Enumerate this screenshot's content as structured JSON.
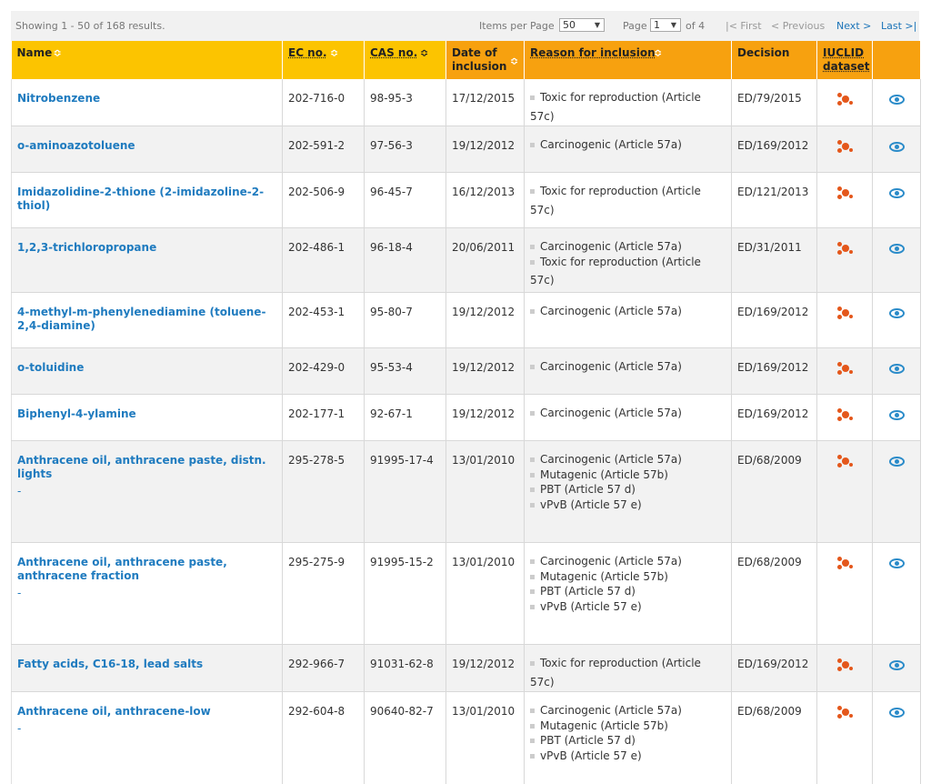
{
  "pagination": {
    "showing": "Showing 1 - 50 of 168 results.",
    "items_per_page_label": "Items per Page",
    "items_per_page_value": "50",
    "page_label": "Page",
    "page_value": "1",
    "of_pages": "of 4",
    "first": "|< First",
    "previous": "< Previous",
    "next": "Next >",
    "last": "Last >|"
  },
  "columns": {
    "name": "Name",
    "ec": "EC no.",
    "cas": "CAS no.",
    "date": "Date of inclusion",
    "reason": "Reason for inclusion",
    "decision": "Decision",
    "iuclid": "IUCLID dataset"
  },
  "icons": {
    "sort": "sort-icon",
    "iuclid": "iuclid-dataset-icon",
    "view": "eye-icon"
  },
  "colors": {
    "header_yellow": "#fcc400",
    "header_orange": "#f7a10f",
    "link": "#1f7bbf",
    "iuclid_icon": "#e4571b"
  },
  "rows": [
    {
      "name": "Nitrobenzene",
      "extra": "",
      "ec": "202-716-0",
      "cas": "98-95-3",
      "date": "17/12/2015",
      "reasons": [
        "Toxic for reproduction (Article 57c)"
      ],
      "decision": "ED/79/2015"
    },
    {
      "name": "o-aminoazotoluene",
      "extra": "",
      "ec": "202-591-2",
      "cas": "97-56-3",
      "date": "19/12/2012",
      "reasons": [
        "Carcinogenic (Article 57a)"
      ],
      "decision": "ED/169/2012"
    },
    {
      "name": "Imidazolidine-2-thione (2-imidazoline-2-thiol)",
      "extra": "",
      "ec": "202-506-9",
      "cas": "96-45-7",
      "date": "16/12/2013",
      "reasons": [
        "Toxic for reproduction (Article 57c)"
      ],
      "decision": "ED/121/2013"
    },
    {
      "name": "1,2,3-trichloropropane",
      "extra": "",
      "ec": "202-486-1",
      "cas": "96-18-4",
      "date": "20/06/2011",
      "reasons": [
        "Carcinogenic (Article 57a)",
        "Toxic for reproduction (Article 57c)"
      ],
      "decision": "ED/31/2011"
    },
    {
      "name": "4-methyl-m-phenylenediamine (toluene-2,4-diamine)",
      "extra": "",
      "ec": "202-453-1",
      "cas": "95-80-7",
      "date": "19/12/2012",
      "reasons": [
        "Carcinogenic (Article 57a)"
      ],
      "decision": "ED/169/2012"
    },
    {
      "name": "o-toluidine",
      "extra": "",
      "ec": "202-429-0",
      "cas": "95-53-4",
      "date": "19/12/2012",
      "reasons": [
        "Carcinogenic (Article 57a)"
      ],
      "decision": "ED/169/2012"
    },
    {
      "name": "Biphenyl-4-ylamine",
      "extra": "",
      "ec": "202-177-1",
      "cas": "92-67-1",
      "date": "19/12/2012",
      "reasons": [
        "Carcinogenic (Article 57a)"
      ],
      "decision": "ED/169/2012"
    },
    {
      "name": "Anthracene oil, anthracene paste, distn. lights",
      "extra": "-",
      "ec": "295-278-5",
      "cas": "91995-17-4",
      "date": "13/01/2010",
      "reasons": [
        "Carcinogenic (Article 57a)",
        "Mutagenic (Article 57b)",
        "PBT (Article 57 d)",
        "vPvB (Article 57 e)"
      ],
      "decision": "ED/68/2009"
    },
    {
      "name": "Anthracene oil, anthracene paste, anthracene fraction",
      "extra": "-",
      "ec": "295-275-9",
      "cas": "91995-15-2",
      "date": "13/01/2010",
      "reasons": [
        "Carcinogenic (Article 57a)",
        "Mutagenic (Article 57b)",
        "PBT (Article 57 d)",
        "vPvB (Article 57 e)"
      ],
      "decision": "ED/68/2009"
    },
    {
      "name": "Fatty acids, C16-18, lead salts",
      "extra": "",
      "ec": "292-966-7",
      "cas": "91031-62-8",
      "date": "19/12/2012",
      "reasons": [
        "Toxic for reproduction (Article 57c)"
      ],
      "decision": "ED/169/2012"
    },
    {
      "name": "Anthracene oil, anthracene-low",
      "extra": "-",
      "ec": "292-604-8",
      "cas": "90640-82-7",
      "date": "13/01/2010",
      "reasons": [
        "Carcinogenic (Article 57a)",
        "Mutagenic (Article 57b)",
        "PBT (Article 57 d)",
        "vPvB (Article 57 e)"
      ],
      "decision": "ED/68/2009"
    }
  ]
}
